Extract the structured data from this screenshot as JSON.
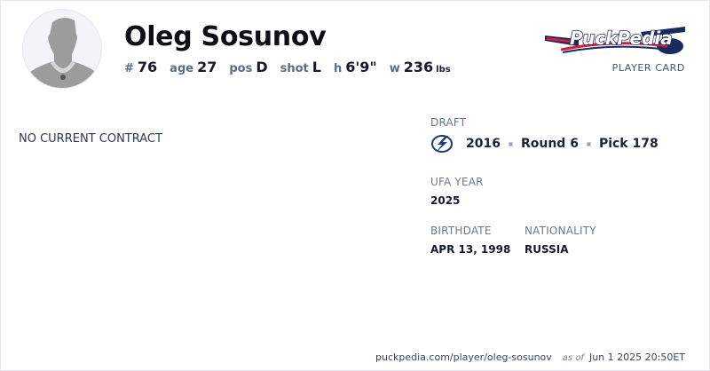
{
  "player": {
    "name": "Oleg Sosunov",
    "stats": [
      {
        "label": "#",
        "value": "76",
        "unit": ""
      },
      {
        "label": "age",
        "value": "27",
        "unit": ""
      },
      {
        "label": "pos",
        "value": "D",
        "unit": ""
      },
      {
        "label": "shot",
        "value": "L",
        "unit": ""
      },
      {
        "label": "h",
        "value": "6'9\"",
        "unit": ""
      },
      {
        "label": "w",
        "value": "236",
        "unit": "lbs"
      }
    ]
  },
  "brand": {
    "logo_text": "PuckPedia",
    "subtitle": "PLAYER CARD",
    "colors": {
      "navy": "#1b2a5c",
      "red": "#d0203a"
    }
  },
  "contract": {
    "status": "NO CURRENT CONTRACT"
  },
  "draft": {
    "label": "DRAFT",
    "team_icon": "tampa-bay-lightning-logo",
    "year": "2016",
    "round": "Round 6",
    "pick": "Pick 178"
  },
  "ufa": {
    "label": "UFA YEAR",
    "value": "2025"
  },
  "birthdate": {
    "label": "BIRTHDATE",
    "value": "APR 13, 1998"
  },
  "nationality": {
    "label": "NATIONALITY",
    "value": "RUSSIA"
  },
  "footer": {
    "url": "puckpedia.com/player/oleg-sosunov",
    "as_of": "as of",
    "timestamp": "Jun 1 2025 20:50ET"
  }
}
